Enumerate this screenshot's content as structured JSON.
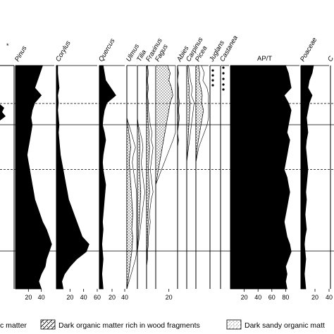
{
  "chart_data": {
    "type": "area",
    "description_axis": "pollen percentage diagram, depth increases downward",
    "panels": [
      {
        "name": "Pinus",
        "axis_ticks": [
          "20",
          "40"
        ],
        "axis_max": 60,
        "fill": "solid",
        "values": [
          42,
          38,
          34,
          30,
          40,
          30,
          26,
          24,
          26,
          24,
          22,
          20,
          18,
          20,
          22,
          24,
          26,
          28,
          30,
          34,
          38,
          42,
          48,
          52,
          56,
          52,
          48,
          46,
          40,
          36,
          40
        ]
      },
      {
        "name": "Corylus",
        "axis_ticks": [
          "20",
          "40",
          "60"
        ],
        "axis_max": 60,
        "fill": "solid",
        "values": [
          2,
          2,
          3,
          4,
          2,
          3,
          2,
          3,
          4,
          3,
          4,
          5,
          6,
          8,
          10,
          12,
          14,
          16,
          18,
          22,
          26,
          30,
          34,
          38,
          48,
          44,
          30,
          20,
          12,
          8,
          10
        ]
      },
      {
        "name": "Quercus",
        "axis_ticks": [
          "20",
          "40"
        ],
        "axis_max": 40,
        "fill": "solid",
        "values": [
          6,
          8,
          10,
          18,
          26,
          12,
          8,
          6,
          5,
          8,
          10,
          8,
          6,
          5,
          6,
          8,
          10,
          9,
          8,
          7,
          6,
          5,
          6,
          5,
          4,
          5,
          6,
          5,
          4,
          5,
          6
        ]
      },
      {
        "name": "Ulmus",
        "axis_ticks": [],
        "axis_max": 20,
        "fill": "dotted",
        "values": [
          0,
          0,
          0,
          0,
          0,
          0,
          0,
          0,
          2,
          4,
          6,
          8,
          6,
          5,
          6,
          7,
          8,
          9,
          10,
          11,
          12,
          11,
          10,
          12,
          11,
          10,
          8,
          6,
          4,
          2,
          0
        ]
      },
      {
        "name": "Tilia",
        "axis_ticks": [],
        "axis_max": 20,
        "fill": "dotted",
        "values": [
          0,
          0,
          0,
          0,
          0,
          0,
          0,
          0,
          1,
          3,
          5,
          6,
          5,
          4,
          5,
          6,
          7,
          8,
          7,
          6,
          5,
          4,
          3,
          2,
          1,
          0,
          0,
          0,
          0,
          0,
          0
        ]
      },
      {
        "name": "Fraxinus",
        "axis_ticks": [],
        "axis_max": 20,
        "fill": "dotted",
        "values": [
          1,
          2,
          1,
          2,
          1,
          2,
          2,
          3,
          4,
          6,
          5,
          7,
          6,
          5,
          4,
          5,
          6,
          7,
          5,
          4,
          3,
          4,
          3,
          2,
          2,
          1,
          1,
          0,
          0,
          0,
          0
        ]
      },
      {
        "name": "Fagus",
        "axis_ticks": [
          "20"
        ],
        "axis_max": 30,
        "fill": "dotted",
        "values": [
          18,
          22,
          20,
          24,
          26,
          22,
          20,
          18,
          16,
          14,
          12,
          10,
          8,
          6,
          4,
          2,
          0,
          0,
          0,
          0,
          0,
          0,
          0,
          0,
          0,
          0,
          0,
          0,
          0,
          0,
          0
        ]
      },
      {
        "name": "Abies",
        "axis_ticks": [],
        "axis_max": 20,
        "fill": "dotted",
        "values": [
          0,
          1,
          0,
          1,
          1,
          2,
          1,
          2,
          1,
          0,
          1,
          0,
          0,
          0,
          0,
          0,
          0,
          0,
          0,
          0,
          0,
          0,
          0,
          0,
          0,
          0,
          0,
          0,
          0,
          0,
          0
        ]
      },
      {
        "name": "Carpinus",
        "axis_ticks": [],
        "axis_max": 20,
        "fill": "dotted",
        "values": [
          2,
          3,
          4,
          6,
          5,
          8,
          7,
          6,
          5,
          4,
          3,
          2,
          1,
          0,
          0,
          0,
          0,
          0,
          0,
          0,
          0,
          0,
          0,
          0,
          0,
          0,
          0,
          0,
          0,
          0,
          0
        ]
      },
      {
        "name": "Picea",
        "axis_ticks": [],
        "axis_max": 20,
        "fill": "dotted",
        "values": [
          4,
          6,
          5,
          8,
          10,
          9,
          12,
          10,
          8,
          6,
          4,
          2,
          1,
          0,
          0,
          0,
          0,
          0,
          0,
          0,
          0,
          0,
          0,
          0,
          0,
          0,
          0,
          0,
          0,
          0,
          0
        ]
      },
      {
        "name": "Juglans",
        "axis_ticks": [],
        "axis_max": 20,
        "fill": "dots",
        "values": []
      },
      {
        "name": "Castanea",
        "axis_ticks": [],
        "axis_max": 20,
        "fill": "dots",
        "values": []
      },
      {
        "name": "AP/T",
        "axis_ticks": [
          "20",
          "40",
          "60",
          "80"
        ],
        "axis_max": 100,
        "fill": "solid",
        "values": [
          80,
          84,
          86,
          88,
          78,
          84,
          88,
          86,
          84,
          82,
          86,
          84,
          82,
          80,
          78,
          82,
          84,
          86,
          84,
          82,
          80,
          78,
          80,
          82,
          86,
          88,
          84,
          80,
          82,
          80,
          82
        ]
      },
      {
        "name": "Poaceae",
        "axis_ticks": [
          "20",
          "40"
        ],
        "axis_max": 40,
        "fill": "solid",
        "values": [
          18,
          16,
          12,
          10,
          16,
          12,
          10,
          8,
          9,
          10,
          8,
          7,
          8,
          9,
          10,
          9,
          8,
          7,
          8,
          7,
          6,
          7,
          8,
          6,
          5,
          6,
          7,
          6,
          5,
          6,
          7
        ]
      }
    ],
    "partial_taxon_labels": [
      "C"
    ],
    "boundaries": {
      "solid_depth_fraction": [
        0.265,
        0.83
      ],
      "dashed_depth_fraction": [
        0.17,
        0.465
      ]
    },
    "legend": [
      {
        "label": "c matter",
        "pattern": "solid"
      },
      {
        "label": "Dark organic matter rich in wood fragments",
        "pattern": "wood"
      },
      {
        "label": "Dark sandy organic matt",
        "pattern": "sandy"
      }
    ],
    "colors": {
      "fill": "#000000",
      "stipple": "#000000",
      "background": "#ffffff"
    }
  }
}
